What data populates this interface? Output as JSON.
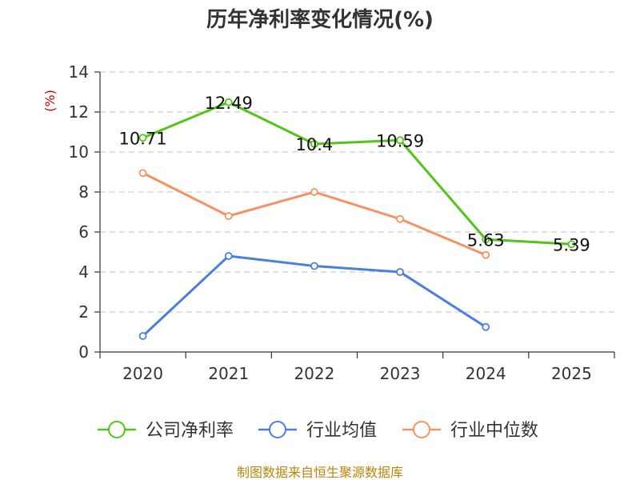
{
  "title": "历年净利率变化情况(%)",
  "source_text": "制图数据来自恒生聚源数据库",
  "colors": {
    "net_margin": "#52c41a",
    "industry_avg": "#4a7fde",
    "industry_median": "#f59262",
    "y_unit": "#cc0000",
    "source": "#b8860b",
    "grid": "#cccccc",
    "axis": "#333333"
  },
  "chart_data": {
    "type": "line",
    "categories": [
      "2020",
      "2021",
      "2022",
      "2023",
      "2024",
      "2025"
    ],
    "ylabel": "(%)",
    "ylim": [
      0,
      14
    ],
    "yticks": [
      0,
      2,
      4,
      6,
      8,
      10,
      12,
      14
    ],
    "grid": true,
    "legend_position": "bottom",
    "series": [
      {
        "name": "公司净利率",
        "color": "#52c41a",
        "values": [
          10.71,
          12.49,
          10.4,
          10.59,
          5.63,
          5.39
        ],
        "labels": [
          "10.71",
          "12.49",
          "10.4",
          "10.59",
          "5.63",
          "5.39"
        ]
      },
      {
        "name": "行业均值",
        "color": "#4a7fde",
        "values": [
          0.8,
          4.8,
          4.3,
          4.0,
          1.25,
          null
        ]
      },
      {
        "name": "行业中位数",
        "color": "#f59262",
        "values": [
          8.95,
          6.8,
          8.0,
          6.65,
          4.85,
          null
        ]
      }
    ]
  }
}
